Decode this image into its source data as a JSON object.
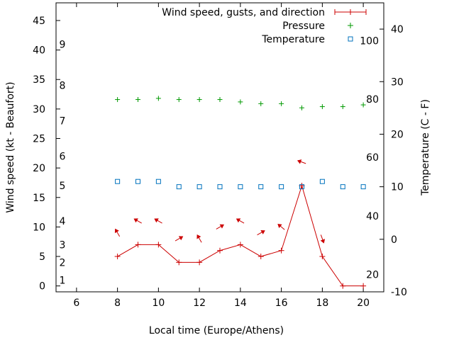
{
  "chart_data": {
    "type": "line",
    "xlabel": "Local time (Europe/Athens)",
    "ylabel": "Wind speed (kt - Beaufort)",
    "y2label": "Temperature (C - F)",
    "xlim": [
      5,
      21
    ],
    "ylim": [
      -1,
      48
    ],
    "y2lim": [
      -10,
      45
    ],
    "xticks": [
      "6",
      "8",
      "10",
      "12",
      "14",
      "16",
      "18",
      "20"
    ],
    "yticks": [
      "0",
      "5",
      "10",
      "15",
      "20",
      "25",
      "30",
      "35",
      "40",
      "45"
    ],
    "y2ticks_c": [
      "-10",
      "0",
      "10",
      "20",
      "30",
      "40"
    ],
    "beaufort": [
      {
        "label": "1",
        "kt": 1
      },
      {
        "label": "2",
        "kt": 4
      },
      {
        "label": "3",
        "kt": 7
      },
      {
        "label": "4",
        "kt": 11
      },
      {
        "label": "5",
        "kt": 17
      },
      {
        "label": "6",
        "kt": 22
      },
      {
        "label": "7",
        "kt": 28
      },
      {
        "label": "8",
        "kt": 34
      },
      {
        "label": "9",
        "kt": 41
      }
    ],
    "fahrenheit": [
      {
        "label": "20",
        "c": -6.7
      },
      {
        "label": "40",
        "c": 4.4
      },
      {
        "label": "60",
        "c": 15.6
      },
      {
        "label": "80",
        "c": 26.7
      },
      {
        "label": "100",
        "c": 37.8
      }
    ],
    "legend": [
      "Wind speed, gusts, and direction",
      "Pressure",
      "Temperature"
    ],
    "series": [
      {
        "name": "Wind speed, gusts, and direction",
        "color": "#cc0000",
        "x": [
          8,
          9,
          10,
          11,
          12,
          13,
          14,
          15,
          16,
          17,
          18,
          19,
          20
        ],
        "values": [
          5,
          7,
          7,
          4,
          4,
          6,
          7,
          5,
          6,
          17,
          5,
          0,
          0
        ]
      },
      {
        "name": "Pressure",
        "color": "#009900",
        "x": [
          8,
          9,
          10,
          11,
          12,
          13,
          14,
          15,
          16,
          17,
          18,
          19,
          20
        ],
        "values": [
          31.6,
          31.6,
          31.8,
          31.6,
          31.6,
          31.6,
          31.2,
          30.9,
          30.9,
          30.2,
          30.4,
          30.4,
          30.7
        ]
      },
      {
        "name": "Temperature",
        "color": "#0072bd",
        "x": [
          8,
          9,
          10,
          11,
          12,
          13,
          14,
          15,
          16,
          17,
          18,
          19,
          20
        ],
        "values": [
          11,
          11,
          11,
          10,
          10,
          10,
          10,
          10,
          10,
          10,
          11,
          10,
          10
        ]
      }
    ],
    "wind_arrows": [
      {
        "x": 8,
        "kt": 9,
        "dir": 150
      },
      {
        "x": 9,
        "kt": 11,
        "dir": 120
      },
      {
        "x": 10,
        "kt": 11,
        "dir": 120
      },
      {
        "x": 11,
        "kt": 8,
        "dir": 240
      },
      {
        "x": 12,
        "kt": 8,
        "dir": 150
      },
      {
        "x": 13,
        "kt": 10,
        "dir": 240
      },
      {
        "x": 14,
        "kt": 11,
        "dir": 120
      },
      {
        "x": 15,
        "kt": 9,
        "dir": 240
      },
      {
        "x": 16,
        "kt": 10,
        "dir": 130
      },
      {
        "x": 17,
        "kt": 21,
        "dir": 110
      },
      {
        "x": 18,
        "kt": 8,
        "dir": 340
      }
    ]
  }
}
